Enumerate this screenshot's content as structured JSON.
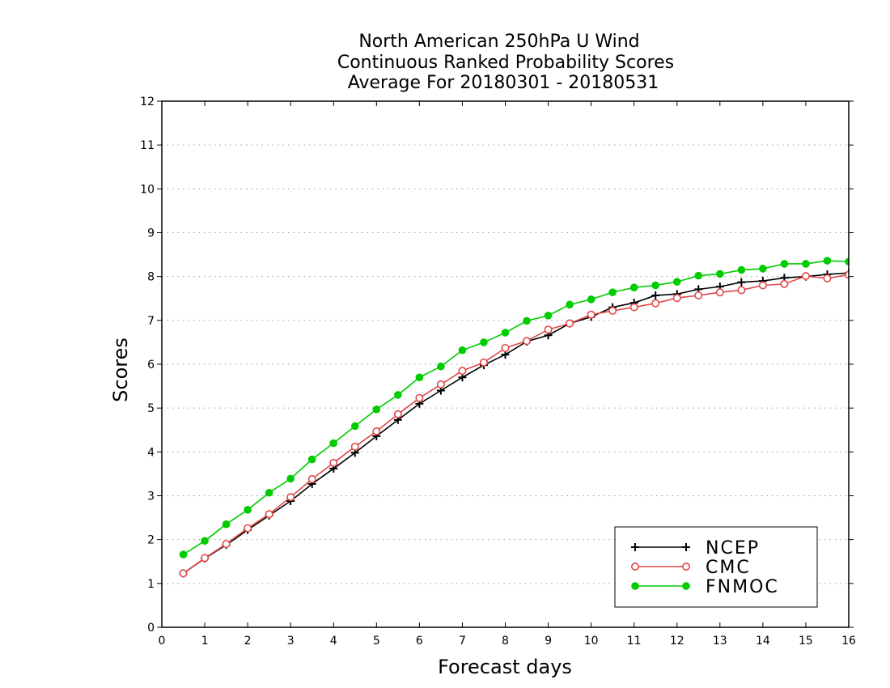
{
  "chart_data": {
    "type": "line",
    "title_lines": [
      "North American 250hPa U Wind",
      "Continuous Ranked Probability Scores",
      "Average For 20180301 - 20180531"
    ],
    "xlabel": "Forecast days",
    "ylabel": "Scores",
    "xlim": [
      0,
      16
    ],
    "ylim": [
      0,
      12
    ],
    "xticks": [
      0,
      1,
      2,
      3,
      4,
      5,
      6,
      7,
      8,
      9,
      10,
      11,
      12,
      13,
      14,
      15,
      16
    ],
    "yticks": [
      0,
      1,
      2,
      3,
      4,
      5,
      6,
      7,
      8,
      9,
      10,
      11,
      12
    ],
    "grid": "horizontal dotted",
    "legend_position": "bottom-right",
    "x": [
      0.5,
      1,
      1.5,
      2,
      2.5,
      3,
      3.5,
      4,
      4.5,
      5,
      5.5,
      6,
      6.5,
      7,
      7.5,
      8,
      8.5,
      9,
      9.5,
      10,
      10.5,
      11,
      11.5,
      12,
      12.5,
      13,
      13.5,
      14,
      14.5,
      15,
      15.5,
      16
    ],
    "series": [
      {
        "name": "NCEP",
        "color": "#000000",
        "marker": "plus",
        "values": [
          1.23,
          1.57,
          1.88,
          2.22,
          2.55,
          2.88,
          3.27,
          3.62,
          3.98,
          4.36,
          4.73,
          5.1,
          5.4,
          5.7,
          5.98,
          6.22,
          6.52,
          6.66,
          6.93,
          7.08,
          7.3,
          7.4,
          7.57,
          7.6,
          7.71,
          7.77,
          7.87,
          7.9,
          7.97,
          8.0,
          8.05,
          8.08
        ]
      },
      {
        "name": "CMC",
        "color": "#e04848",
        "marker": "open-circle",
        "values": [
          1.23,
          1.58,
          1.9,
          2.26,
          2.58,
          2.97,
          3.38,
          3.75,
          4.12,
          4.47,
          4.86,
          5.23,
          5.54,
          5.85,
          6.04,
          6.37,
          6.53,
          6.79,
          6.93,
          7.13,
          7.22,
          7.3,
          7.39,
          7.51,
          7.57,
          7.64,
          7.69,
          7.8,
          7.83,
          8.01,
          7.96,
          8.04
        ]
      },
      {
        "name": "FNMOC",
        "color": "#00cc00",
        "marker": "filled-circle",
        "values": [
          1.66,
          1.97,
          2.35,
          2.68,
          3.07,
          3.39,
          3.83,
          4.2,
          4.59,
          4.97,
          5.3,
          5.7,
          5.95,
          6.32,
          6.5,
          6.72,
          6.99,
          7.11,
          7.36,
          7.48,
          7.64,
          7.75,
          7.8,
          7.88,
          8.02,
          8.06,
          8.15,
          8.18,
          8.29,
          8.29,
          8.36,
          8.34
        ]
      }
    ]
  }
}
